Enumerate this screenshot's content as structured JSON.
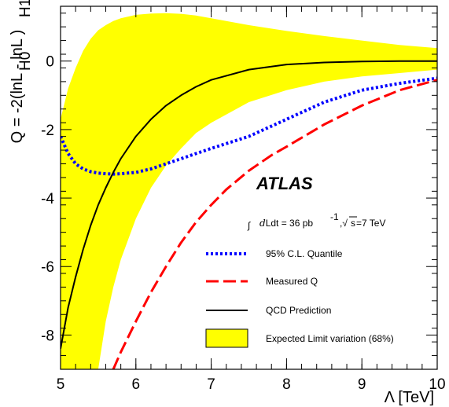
{
  "chart_data": {
    "type": "line",
    "xlabel": "Λ [TeV]",
    "ylabel": "Q = -2(lnL  - lnL  )",
    "ylabel_sub1": "H0",
    "ylabel_sub2": "H1",
    "xlim": [
      5,
      10
    ],
    "ylim": [
      -9,
      1.6
    ],
    "xticks": [
      5,
      6,
      7,
      8,
      9,
      10
    ],
    "xtick_labels": [
      "5",
      "6",
      "7",
      "8",
      "9",
      "10"
    ],
    "yticks": [
      -8,
      -6,
      -4,
      -2,
      0
    ],
    "ytick_labels": [
      "-8",
      "-6",
      "-4",
      "-2",
      "0"
    ],
    "grid": false,
    "legend_position": "bottom-right",
    "annotations": {
      "experiment": "ATLAS",
      "lumi_prefix": "Ldt = 36 pb",
      "lumi_exp": "-1",
      "lumi_suffix": "=7 TeV",
      "sqrt_s": "s"
    },
    "series": [
      {
        "name": "95% C.L. Quantile",
        "style": "dotted",
        "color": "#0000ff",
        "x": [
          5.0,
          5.1,
          5.2,
          5.3,
          5.4,
          5.5,
          5.6,
          5.7,
          5.8,
          6.0,
          6.2,
          6.4,
          6.6,
          6.8,
          7.0,
          7.5,
          8.0,
          8.5,
          9.0,
          9.5,
          10.0
        ],
        "y": [
          -2.2,
          -2.7,
          -3.0,
          -3.15,
          -3.23,
          -3.27,
          -3.29,
          -3.3,
          -3.29,
          -3.25,
          -3.15,
          -3.0,
          -2.85,
          -2.7,
          -2.55,
          -2.2,
          -1.7,
          -1.2,
          -0.85,
          -0.65,
          -0.5
        ]
      },
      {
        "name": "Measured Q",
        "style": "dashed",
        "color": "#ff0000",
        "x": [
          5.7,
          5.8,
          6.0,
          6.2,
          6.4,
          6.6,
          6.8,
          7.0,
          7.2,
          7.5,
          7.8,
          8.0,
          8.5,
          9.0,
          9.5,
          10.0
        ],
        "y": [
          -9.0,
          -8.5,
          -7.6,
          -6.75,
          -6.0,
          -5.3,
          -4.7,
          -4.2,
          -3.75,
          -3.2,
          -2.75,
          -2.5,
          -1.85,
          -1.3,
          -0.85,
          -0.55
        ]
      },
      {
        "name": "QCD Prediction",
        "style": "solid",
        "color": "#000000",
        "x": [
          5.0,
          5.1,
          5.2,
          5.3,
          5.4,
          5.5,
          5.6,
          5.7,
          5.8,
          6.0,
          6.2,
          6.4,
          6.6,
          6.8,
          7.0,
          7.5,
          8.0,
          8.5,
          9.0,
          9.5,
          10.0
        ],
        "y": [
          -8.4,
          -7.2,
          -6.3,
          -5.5,
          -4.8,
          -4.2,
          -3.7,
          -3.25,
          -2.85,
          -2.2,
          -1.7,
          -1.3,
          -1.0,
          -0.75,
          -0.55,
          -0.25,
          -0.1,
          -0.04,
          -0.01,
          0.0,
          0.0
        ]
      }
    ],
    "band": {
      "name": "Expected Limit variation (68%)",
      "color": "#ffff00",
      "x": [
        5.0,
        5.1,
        5.2,
        5.3,
        5.4,
        5.5,
        5.6,
        5.7,
        5.8,
        6.0,
        6.2,
        6.4,
        6.6,
        6.8,
        7.0,
        7.5,
        8.0,
        8.5,
        9.0,
        9.5,
        10.0
      ],
      "upper": [
        -1.7,
        -0.8,
        -0.2,
        0.3,
        0.65,
        0.9,
        1.05,
        1.17,
        1.25,
        1.35,
        1.39,
        1.4,
        1.38,
        1.33,
        1.25,
        1.05,
        0.88,
        0.73,
        0.6,
        0.47,
        0.38
      ],
      "lower": [
        -9.0,
        -9.0,
        -9.0,
        -9.0,
        -9.0,
        -9.0,
        -7.6,
        -6.6,
        -5.8,
        -4.6,
        -3.7,
        -3.05,
        -2.55,
        -2.1,
        -1.8,
        -1.2,
        -0.85,
        -0.6,
        -0.45,
        -0.35,
        -0.25
      ]
    }
  }
}
